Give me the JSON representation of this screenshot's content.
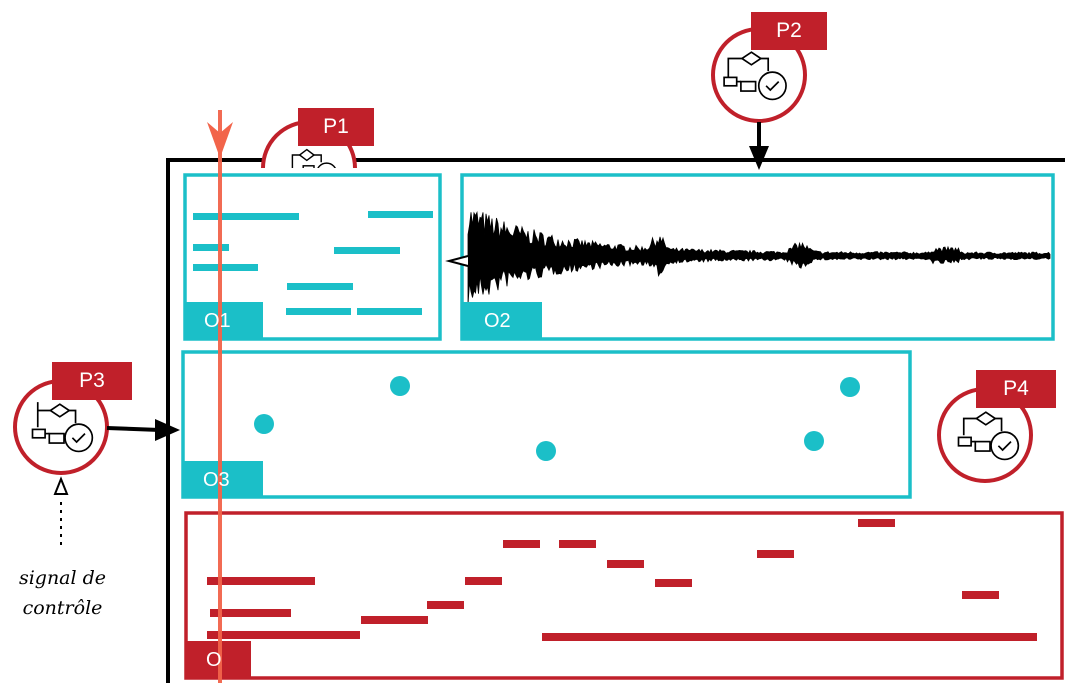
{
  "processes": {
    "p1": {
      "label": "P1",
      "icon": "flowchart-check-icon"
    },
    "p2": {
      "label": "P2",
      "icon": "flowchart-check-icon"
    },
    "p3": {
      "label": "P3",
      "icon": "flowchart-check-icon"
    },
    "p4": {
      "label": "P4",
      "icon": "flowchart-check-icon"
    }
  },
  "objects": {
    "o1": {
      "label": "O1"
    },
    "o2": {
      "label": "O2"
    },
    "o3": {
      "label": "O3"
    },
    "o": {
      "label": "O"
    }
  },
  "control_signal": {
    "line1": "signal de",
    "line2": "contrôle"
  },
  "colors": {
    "process_red": "#c0202a",
    "object_cyan": "#1bbfc8",
    "output_red": "#c0202a",
    "playhead": "#f2644a",
    "frame": "#000000"
  }
}
